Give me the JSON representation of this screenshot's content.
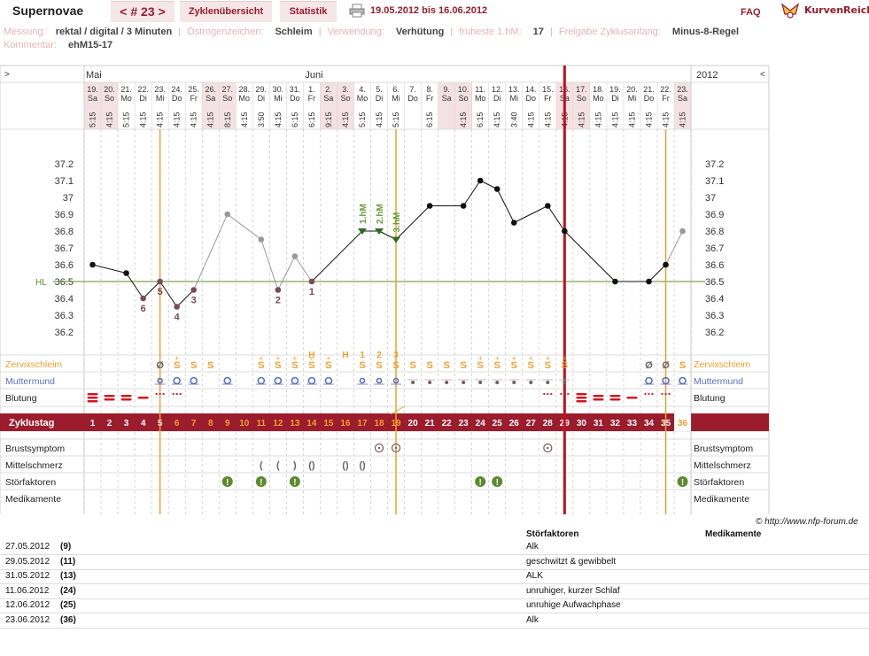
{
  "header": {
    "app_name": "Supernovae",
    "cycle_nav": "< # 23 >",
    "tab_overview": "Zyklenübersicht",
    "tab_stats": "Statistik",
    "date_range": "19.05.2012 bis 16.06.2012",
    "faq": "FAQ",
    "logo_text": "KurvenReich"
  },
  "info": {
    "messung_label": "Messung:",
    "messung_value": "rektal / digital / 3 Minuten",
    "oestrogen_label": "Östrogenzeichen:",
    "oestrogen_value": "Schleim",
    "verwendung_label": "Verwendung:",
    "verwendung_value": "Verhütung",
    "fruehest_label": "früheste 1.hM:",
    "fruehest_value": "17",
    "freigabe_label": "Freigabe Zyklusanfang:",
    "freigabe_value": "Minus-8-Regel",
    "kommentar_label": "Kommentar:",
    "kommentar_value": "ehM15-17"
  },
  "chart_data": {
    "type": "line",
    "title": "",
    "year": "2012",
    "nav_left": ">",
    "nav_right": "<",
    "month_labels": [
      {
        "col": 0,
        "label": "Mai"
      },
      {
        "col": 13,
        "label": "Juni"
      }
    ],
    "days": [
      {
        "d": "19.",
        "w": "Sa",
        "t": "5:15",
        "we": true
      },
      {
        "d": "20.",
        "w": "So",
        "t": "4:15",
        "we": true
      },
      {
        "d": "21.",
        "w": "Mo",
        "t": "5:15"
      },
      {
        "d": "22.",
        "w": "Di",
        "t": "4:15"
      },
      {
        "d": "23.",
        "w": "Mi",
        "t": "4:15"
      },
      {
        "d": "24.",
        "w": "Do",
        "t": "4:15"
      },
      {
        "d": "25.",
        "w": "Fr",
        "t": "4:15"
      },
      {
        "d": "26.",
        "w": "Sa",
        "t": "4:15",
        "we": true
      },
      {
        "d": "27.",
        "w": "So",
        "t": "8:15",
        "we": true
      },
      {
        "d": "28.",
        "w": "Mo",
        "t": "4:15"
      },
      {
        "d": "29.",
        "w": "Di",
        "t": "3:50"
      },
      {
        "d": "30.",
        "w": "Mi",
        "t": "4:15"
      },
      {
        "d": "31.",
        "w": "Do",
        "t": "6:15"
      },
      {
        "d": "1.",
        "w": "Fr",
        "t": "6:15"
      },
      {
        "d": "2.",
        "w": "Sa",
        "t": "9:15",
        "we": true
      },
      {
        "d": "3.",
        "w": "So",
        "t": "4:15",
        "we": true
      },
      {
        "d": "4.",
        "w": "Mo",
        "t": "5:15"
      },
      {
        "d": "5.",
        "w": "Di",
        "t": "4:15"
      },
      {
        "d": "6.",
        "w": "Mi",
        "t": "5:15"
      },
      {
        "d": "7.",
        "w": "Do",
        "t": ""
      },
      {
        "d": "8.",
        "w": "Fr",
        "t": "6:15"
      },
      {
        "d": "9.",
        "w": "Sa",
        "t": "",
        "we": true
      },
      {
        "d": "10.",
        "w": "So",
        "t": "4:15",
        "we": true
      },
      {
        "d": "11.",
        "w": "Mo",
        "t": "6:15"
      },
      {
        "d": "12.",
        "w": "Di",
        "t": "4:15"
      },
      {
        "d": "13.",
        "w": "Mi",
        "t": "3:40"
      },
      {
        "d": "14.",
        "w": "Do",
        "t": "4:15"
      },
      {
        "d": "15.",
        "w": "Fr",
        "t": "4:15"
      },
      {
        "d": "16.",
        "w": "Sa",
        "t": "4:15",
        "we": true
      },
      {
        "d": "17.",
        "w": "So",
        "t": "4:15",
        "we": true
      },
      {
        "d": "18.",
        "w": "Mo",
        "t": "4:15"
      },
      {
        "d": "19.",
        "w": "Di",
        "t": "4:15"
      },
      {
        "d": "20.",
        "w": "Mi",
        "t": "4:15"
      },
      {
        "d": "21.",
        "w": "Do",
        "t": "4:15"
      },
      {
        "d": "22.",
        "w": "Fr",
        "t": "4:15"
      },
      {
        "d": "23.",
        "w": "Sa",
        "t": "4:15",
        "we": true
      }
    ],
    "ylim": [
      36.1,
      37.3
    ],
    "y_ticks": [
      "37.2",
      "37.1",
      "37",
      "36.9",
      "36.8",
      "36.7",
      "36.6",
      "36.5",
      "36.4",
      "36.3",
      "36.2"
    ],
    "hl_label": "HL",
    "hl_value": 36.5,
    "temperatures": [
      {
        "col": 0,
        "v": 36.6,
        "c": "main"
      },
      {
        "col": 2,
        "v": 36.55,
        "c": "main"
      },
      {
        "col": 3,
        "v": 36.4,
        "c": "low",
        "lbl": "6"
      },
      {
        "col": 4,
        "v": 36.5,
        "c": "low",
        "lbl": "5"
      },
      {
        "col": 5,
        "v": 36.35,
        "c": "low",
        "lbl": "4"
      },
      {
        "col": 6,
        "v": 36.45,
        "c": "low",
        "lbl": "3"
      },
      {
        "col": 8,
        "v": 36.9,
        "c": "excl"
      },
      {
        "col": 10,
        "v": 36.75,
        "c": "excl"
      },
      {
        "col": 11,
        "v": 36.45,
        "c": "low",
        "lbl": "2"
      },
      {
        "col": 12,
        "v": 36.65,
        "c": "excl"
      },
      {
        "col": 13,
        "v": 36.5,
        "c": "low",
        "lbl": "1"
      },
      {
        "col": 16,
        "v": 36.8,
        "c": "hm",
        "lbl": "1.hM"
      },
      {
        "col": 17,
        "v": 36.8,
        "c": "hm",
        "lbl": "2.hM"
      },
      {
        "col": 18,
        "v": 36.75,
        "c": "hm",
        "lbl": "3.hM"
      },
      {
        "col": 20,
        "v": 36.95,
        "c": "main"
      },
      {
        "col": 22,
        "v": 36.95,
        "c": "main"
      },
      {
        "col": 23,
        "v": 37.1,
        "c": "main"
      },
      {
        "col": 24,
        "v": 37.05,
        "c": "main"
      },
      {
        "col": 25,
        "v": 36.85,
        "c": "main"
      },
      {
        "col": 27,
        "v": 36.95,
        "c": "main"
      },
      {
        "col": 28,
        "v": 36.8,
        "c": "main"
      },
      {
        "col": 31,
        "v": 36.5,
        "c": "main"
      },
      {
        "col": 33,
        "v": 36.5,
        "c": "main"
      },
      {
        "col": 34,
        "v": 36.6,
        "c": "main"
      },
      {
        "col": 35,
        "v": 36.8,
        "c": "excl"
      }
    ],
    "segments": [
      {
        "from": 0,
        "to": 2,
        "c": "main"
      },
      {
        "from": 2,
        "to": 3,
        "c": "main"
      },
      {
        "from": 3,
        "to": 4,
        "c": "main"
      },
      {
        "from": 4,
        "to": 5,
        "c": "main"
      },
      {
        "from": 5,
        "to": 6,
        "c": "main"
      },
      {
        "from": 6,
        "to": 8,
        "c": "excl"
      },
      {
        "from": 8,
        "to": 10,
        "c": "excl"
      },
      {
        "from": 10,
        "to": 11,
        "c": "excl"
      },
      {
        "from": 11,
        "to": 12,
        "c": "excl"
      },
      {
        "from": 12,
        "to": 13,
        "c": "excl"
      },
      {
        "from": 13,
        "to": 16,
        "c": "main"
      },
      {
        "from": 16,
        "to": 17,
        "c": "main"
      },
      {
        "from": 17,
        "to": 18,
        "c": "main"
      },
      {
        "from": 18,
        "to": 20,
        "c": "main"
      },
      {
        "from": 20,
        "to": 22,
        "c": "main"
      },
      {
        "from": 22,
        "to": 23,
        "c": "main"
      },
      {
        "from": 23,
        "to": 24,
        "c": "main"
      },
      {
        "from": 24,
        "to": 25,
        "c": "main"
      },
      {
        "from": 25,
        "to": 27,
        "c": "main"
      },
      {
        "from": 27,
        "to": 28,
        "c": "main"
      },
      {
        "from": 28,
        "to": 31,
        "c": "main"
      },
      {
        "from": 31,
        "to": 33,
        "c": "main"
      },
      {
        "from": 33,
        "to": 34,
        "c": "main"
      },
      {
        "from": 34,
        "to": 35,
        "c": "excl"
      }
    ],
    "peak_markers": [
      {
        "col": 13,
        "label": "H"
      },
      {
        "col": 15,
        "label": "H"
      },
      {
        "col": 16,
        "label": "1"
      },
      {
        "col": 17,
        "label": "2"
      },
      {
        "col": 18,
        "label": "3"
      }
    ],
    "row_labels": {
      "zervix": "Zervixschleim",
      "muttermund": "Muttermund",
      "blutung": "Blutung",
      "zyklustag": "Zyklustag",
      "brust": "Brustsymptom",
      "mittel": "Mittelschmerz",
      "stoer": "Störfaktoren",
      "medi": "Medikamente"
    },
    "zervix": [
      {
        "col": 4,
        "s": "Ø"
      },
      {
        "col": 5,
        "s": "S+"
      },
      {
        "col": 6,
        "s": "S"
      },
      {
        "col": 7,
        "s": "S"
      },
      {
        "col": 10,
        "s": "S+"
      },
      {
        "col": 11,
        "s": "S+"
      },
      {
        "col": 12,
        "s": "S+"
      },
      {
        "col": 13,
        "s": "S+"
      },
      {
        "col": 14,
        "s": "S+"
      },
      {
        "col": 16,
        "s": "S"
      },
      {
        "col": 17,
        "s": "S"
      },
      {
        "col": 18,
        "s": "S"
      },
      {
        "col": 19,
        "s": "S"
      },
      {
        "col": 20,
        "s": "S"
      },
      {
        "col": 21,
        "s": "S"
      },
      {
        "col": 22,
        "s": "S"
      },
      {
        "col": 23,
        "s": "S+"
      },
      {
        "col": 24,
        "s": "S+"
      },
      {
        "col": 25,
        "s": "S+"
      },
      {
        "col": 26,
        "s": "S+"
      },
      {
        "col": 27,
        "s": "S+"
      },
      {
        "col": 28,
        "s": "S+"
      },
      {
        "col": 33,
        "s": "Ø"
      },
      {
        "col": 34,
        "s": "Ø"
      },
      {
        "col": 35,
        "s": "S"
      }
    ],
    "muttermund": [
      {
        "col": 4,
        "k": "small"
      },
      {
        "col": 5,
        "k": "big"
      },
      {
        "col": 6,
        "k": "big"
      },
      {
        "col": 8,
        "k": "big"
      },
      {
        "col": 10,
        "k": "big"
      },
      {
        "col": 11,
        "k": "big"
      },
      {
        "col": 12,
        "k": "big"
      },
      {
        "col": 13,
        "k": "big"
      },
      {
        "col": 14,
        "k": "big"
      },
      {
        "col": 16,
        "k": "small"
      },
      {
        "col": 17,
        "k": "small"
      },
      {
        "col": 18,
        "k": "small"
      },
      {
        "col": 19,
        "k": "dot"
      },
      {
        "col": 20,
        "k": "dot"
      },
      {
        "col": 21,
        "k": "dot"
      },
      {
        "col": 22,
        "k": "dot"
      },
      {
        "col": 23,
        "k": "dot"
      },
      {
        "col": 24,
        "k": "dot"
      },
      {
        "col": 25,
        "k": "dot"
      },
      {
        "col": 26,
        "k": "dot"
      },
      {
        "col": 27,
        "k": "dot"
      },
      {
        "col": 28,
        "k": "dot"
      },
      {
        "col": 33,
        "k": "big"
      },
      {
        "col": 34,
        "k": "big"
      },
      {
        "col": 35,
        "k": "big"
      }
    ],
    "blutung": [
      {
        "col": 0,
        "k": "heavy"
      },
      {
        "col": 1,
        "k": "mid"
      },
      {
        "col": 2,
        "k": "mid"
      },
      {
        "col": 3,
        "k": "light"
      },
      {
        "col": 4,
        "k": "spot"
      },
      {
        "col": 5,
        "k": "spot"
      },
      {
        "col": 27,
        "k": "spot"
      },
      {
        "col": 28,
        "k": "spot"
      },
      {
        "col": 29,
        "k": "heavy"
      },
      {
        "col": 30,
        "k": "mid"
      },
      {
        "col": 31,
        "k": "mid"
      },
      {
        "col": 32,
        "k": "light"
      },
      {
        "col": 33,
        "k": "spot"
      },
      {
        "col": 34,
        "k": "spot"
      }
    ],
    "cycle_days": [
      "1",
      "2",
      "3",
      "4",
      "5",
      "6",
      "7",
      "8",
      "9",
      "10",
      "11",
      "12",
      "13",
      "14",
      "15",
      "16",
      "17",
      "18",
      "19",
      "20",
      "21",
      "22",
      "23",
      "24",
      "25",
      "26",
      "27",
      "28",
      "29",
      "30",
      "31",
      "32",
      "33",
      "34",
      "35",
      "36"
    ],
    "brust": [
      17,
      18,
      27
    ],
    "mittel": [
      {
        "col": 10,
        "s": "("
      },
      {
        "col": 11,
        "s": "("
      },
      {
        "col": 12,
        "s": ")"
      },
      {
        "col": 13,
        "s": "()"
      },
      {
        "col": 15,
        "s": "()"
      },
      {
        "col": 16,
        "s": "()"
      }
    ],
    "stoer": [
      8,
      10,
      12,
      23,
      24,
      35
    ],
    "orange_lines": [
      4.5,
      18.5,
      34.5
    ],
    "red_line": 28.5,
    "colors": {
      "accent": "#9b1c2c",
      "orange": "#f0a030",
      "green": "#5c8a2e",
      "blue": "#5a6fc0",
      "ymain": "#9b1c2c"
    }
  },
  "credit": "© http://www.nfp-forum.de",
  "notes": {
    "head_stoer": "Störfaktoren",
    "head_medi": "Medikamente",
    "rows": [
      {
        "date": "27.05.2012",
        "day": "(9)",
        "text": "Alk"
      },
      {
        "date": "29.05.2012",
        "day": "(11)",
        "text": "geschwitzt & gewibbelt"
      },
      {
        "date": "31.05.2012",
        "day": "(13)",
        "text": "ALK"
      },
      {
        "date": "11.06.2012",
        "day": "(24)",
        "text": "unruhiger, kurzer Schlaf"
      },
      {
        "date": "12.06.2012",
        "day": "(25)",
        "text": "unruhige Aufwachphase"
      },
      {
        "date": "23.06.2012",
        "day": "(36)",
        "text": "Alk"
      }
    ]
  }
}
